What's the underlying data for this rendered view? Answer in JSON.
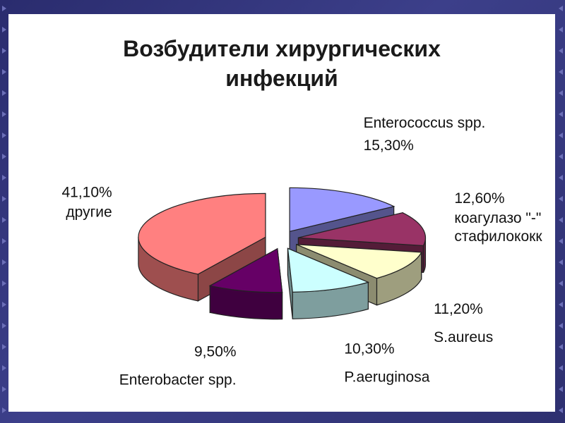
{
  "chart_data": {
    "type": "pie",
    "title_line1": "Возбудители хирургических",
    "title_line2": "инфекций",
    "slices": [
      {
        "name_lines": [
          "Enterococcus spp."
        ],
        "value": 15.3,
        "value_label": "15,30%",
        "color": "#9999ff"
      },
      {
        "name_lines": [
          "коагулазо \"-\"",
          "стафилококк"
        ],
        "value": 12.6,
        "value_label": "12,60%",
        "color": "#993366"
      },
      {
        "name_lines": [
          "S.aureus"
        ],
        "value": 11.2,
        "value_label": "11,20%",
        "color": "#ffffcc"
      },
      {
        "name_lines": [
          "P.aeruginosa"
        ],
        "value": 10.3,
        "value_label": "10,30%",
        "color": "#ccffff"
      },
      {
        "name_lines": [
          "Enterobacter spp."
        ],
        "value": 9.5,
        "value_label": "9,50%",
        "color": "#660066"
      },
      {
        "name_lines": [
          "другие"
        ],
        "value": 41.1,
        "value_label": "41,10%",
        "color": "#ff8080"
      }
    ]
  }
}
